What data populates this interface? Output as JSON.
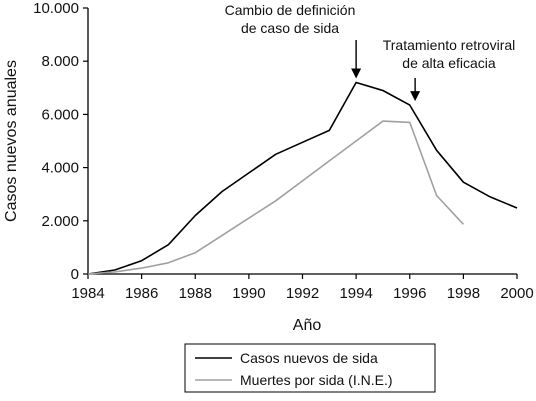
{
  "chart_data": {
    "type": "line",
    "xlabel": "Año",
    "ylabel": "Casos nuevos anuales",
    "xlim": [
      1984,
      2000
    ],
    "ylim": [
      0,
      10000
    ],
    "x_ticks": [
      1984,
      1986,
      1988,
      1990,
      1992,
      1994,
      1996,
      1998,
      2000
    ],
    "x_tick_labels": [
      "1984",
      "1986",
      "1988",
      "1990",
      "1992",
      "1994",
      "1996",
      "1998",
      "2000"
    ],
    "y_ticks": [
      0,
      2000,
      4000,
      6000,
      8000,
      10000
    ],
    "y_tick_labels": [
      "0",
      "2.000",
      "4.000",
      "6.000",
      "8.000",
      "10.000"
    ],
    "grid": false,
    "legend_position": "bottom-center",
    "series": [
      {
        "name": "Casos nuevos de sida",
        "color": "#000000",
        "x": [
          1984,
          1985,
          1986,
          1987,
          1988,
          1989,
          1990,
          1991,
          1992,
          1993,
          1994,
          1995,
          1996,
          1997,
          1998,
          1999,
          2000
        ],
        "y": [
          0,
          150,
          500,
          1100,
          2200,
          3100,
          3800,
          4500,
          4950,
          5400,
          7200,
          6900,
          6350,
          4650,
          3450,
          2900,
          2480
        ]
      },
      {
        "name": "Muertes por sida (I.N.E.)",
        "color": "#a0a0a0",
        "x": [
          1984,
          1985,
          1986,
          1987,
          1988,
          1989,
          1990,
          1991,
          1992,
          1993,
          1994,
          1995,
          1996,
          1997,
          1998
        ],
        "y": [
          0,
          80,
          220,
          420,
          800,
          1450,
          2100,
          2750,
          3500,
          4250,
          5000,
          5750,
          5700,
          2950,
          1870
        ]
      }
    ],
    "annotations": [
      {
        "lines": [
          "Cambio de definición",
          "de caso de sida"
        ],
        "x": 1994,
        "y": 7200
      },
      {
        "lines": [
          "Tratamiento retroviral",
          "de alta eficacia"
        ],
        "x": 1996.2,
        "y": 6350
      }
    ]
  }
}
